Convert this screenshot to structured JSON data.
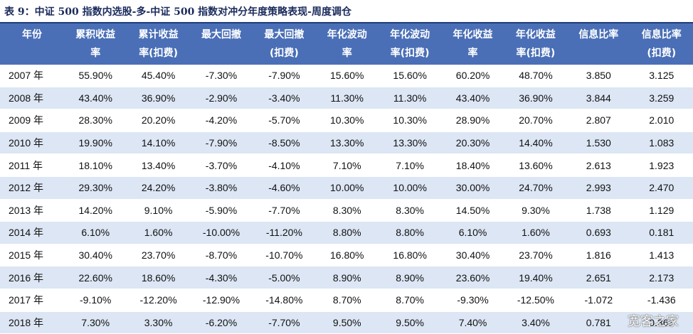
{
  "caption": "表 9：中证 500 指数内选股-多-中证 500 指数对冲分年度策略表现-周度调仓",
  "columns": [
    {
      "l1": "年份",
      "l2": ""
    },
    {
      "l1": "累积收益",
      "l2": "率"
    },
    {
      "l1": "累计收益",
      "l2": "率(扣费)"
    },
    {
      "l1": "最大回撤",
      "l2": ""
    },
    {
      "l1": "最大回撤",
      "l2": "(扣费)"
    },
    {
      "l1": "年化波动",
      "l2": "率"
    },
    {
      "l1": "年化波动",
      "l2": "率(扣费)"
    },
    {
      "l1": "年化收益",
      "l2": "率"
    },
    {
      "l1": "年化收益",
      "l2": "率(扣费)"
    },
    {
      "l1": "信息比率",
      "l2": ""
    },
    {
      "l1": "信息比率",
      "l2": "(扣费)"
    }
  ],
  "rows": [
    [
      "2007 年",
      "55.90%",
      "45.40%",
      "-7.30%",
      "-7.90%",
      "15.60%",
      "15.60%",
      "60.20%",
      "48.70%",
      "3.850",
      "3.125"
    ],
    [
      "2008 年",
      "43.40%",
      "36.90%",
      "-2.90%",
      "-3.40%",
      "11.30%",
      "11.30%",
      "43.40%",
      "36.90%",
      "3.844",
      "3.259"
    ],
    [
      "2009 年",
      "28.30%",
      "20.20%",
      "-4.20%",
      "-5.70%",
      "10.30%",
      "10.30%",
      "28.90%",
      "20.70%",
      "2.807",
      "2.010"
    ],
    [
      "2010 年",
      "19.90%",
      "14.10%",
      "-7.90%",
      "-8.50%",
      "13.30%",
      "13.30%",
      "20.30%",
      "14.40%",
      "1.530",
      "1.083"
    ],
    [
      "2011 年",
      "18.10%",
      "13.40%",
      "-3.70%",
      "-4.10%",
      "7.10%",
      "7.10%",
      "18.40%",
      "13.60%",
      "2.613",
      "1.923"
    ],
    [
      "2012 年",
      "29.30%",
      "24.20%",
      "-3.80%",
      "-4.60%",
      "10.00%",
      "10.00%",
      "30.00%",
      "24.70%",
      "2.993",
      "2.470"
    ],
    [
      "2013 年",
      "14.20%",
      "9.10%",
      "-5.90%",
      "-7.70%",
      "8.30%",
      "8.30%",
      "14.50%",
      "9.30%",
      "1.738",
      "1.129"
    ],
    [
      "2014 年",
      "6.10%",
      "1.60%",
      "-10.00%",
      "-11.20%",
      "8.80%",
      "8.80%",
      "6.10%",
      "1.60%",
      "0.693",
      "0.181"
    ],
    [
      "2015 年",
      "30.40%",
      "23.70%",
      "-8.70%",
      "-10.70%",
      "16.80%",
      "16.80%",
      "30.40%",
      "23.70%",
      "1.816",
      "1.413"
    ],
    [
      "2016 年",
      "22.60%",
      "18.60%",
      "-4.30%",
      "-5.00%",
      "8.90%",
      "8.90%",
      "23.60%",
      "19.40%",
      "2.651",
      "2.173"
    ],
    [
      "2017 年",
      "-9.10%",
      "-12.20%",
      "-12.90%",
      "-14.80%",
      "8.70%",
      "8.70%",
      "-9.30%",
      "-12.50%",
      "-1.072",
      "-1.436"
    ],
    [
      "2018 年",
      "7.30%",
      "3.30%",
      "-6.20%",
      "-7.70%",
      "9.50%",
      "9.50%",
      "7.40%",
      "3.40%",
      "0.781",
      "0.363"
    ]
  ],
  "watermark": "宽客之家",
  "colors": {
    "header_bg": "#4a6fb6",
    "stripe": "#dce6f4",
    "caption": "#1a2b5c"
  }
}
